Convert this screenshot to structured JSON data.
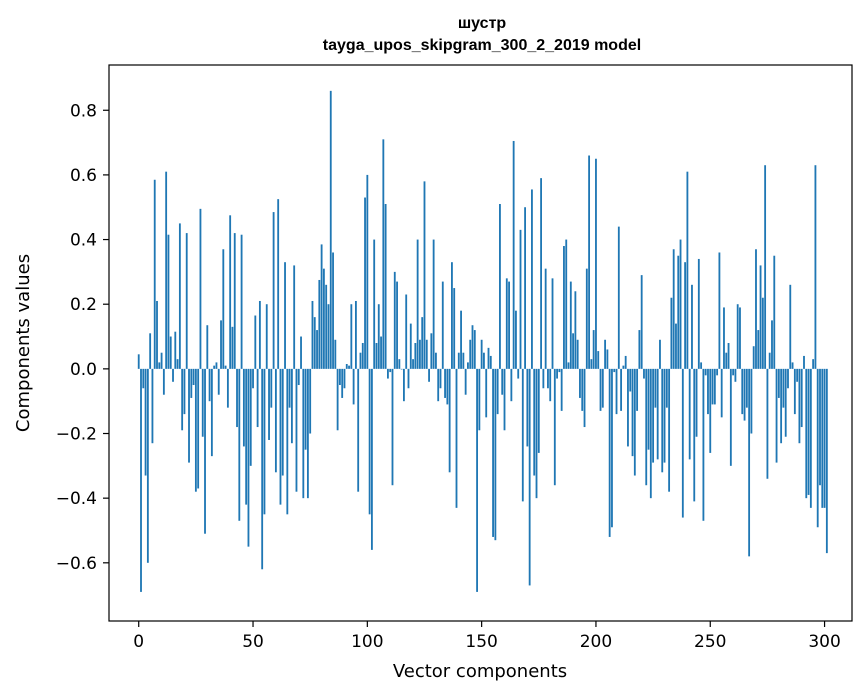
{
  "chart_data": {
    "type": "bar",
    "title": "шустр",
    "subtitle": "tayga_upos_skipgram_300_2_2019 model",
    "xlabel": "Vector components",
    "ylabel": "Components values",
    "xlim": [
      -13,
      312
    ],
    "ylim": [
      -0.78,
      0.94
    ],
    "xticks": [
      0,
      50,
      100,
      150,
      200,
      250,
      300
    ],
    "xtick_labels": [
      "0",
      "50",
      "100",
      "150",
      "200",
      "250",
      "300"
    ],
    "yticks": [
      -0.6,
      -0.4,
      -0.2,
      0.0,
      0.2,
      0.4,
      0.6,
      0.8
    ],
    "ytick_labels": [
      "−0.6",
      "−0.4",
      "−0.2",
      "0.0",
      "0.2",
      "0.4",
      "0.6",
      "0.8"
    ],
    "bar_color": "#1f77b4",
    "grid": false,
    "values": [
      0.045,
      -0.69,
      -0.06,
      -0.33,
      -0.6,
      0.11,
      -0.23,
      0.585,
      0.21,
      0.02,
      0.05,
      -0.08,
      0.61,
      0.415,
      0.1,
      -0.04,
      0.115,
      0.03,
      0.45,
      -0.19,
      -0.14,
      0.42,
      -0.29,
      -0.09,
      -0.05,
      -0.38,
      -0.37,
      0.495,
      -0.21,
      -0.51,
      0.135,
      -0.1,
      -0.27,
      0.01,
      0.02,
      -0.08,
      0.15,
      0.37,
      0.01,
      -0.12,
      0.475,
      0.13,
      0.42,
      -0.18,
      -0.47,
      0.415,
      -0.24,
      -0.42,
      -0.55,
      -0.3,
      -0.06,
      0.165,
      -0.18,
      0.21,
      -0.62,
      -0.45,
      0.2,
      -0.22,
      -0.12,
      0.485,
      -0.32,
      0.525,
      -0.42,
      -0.33,
      0.33,
      -0.45,
      -0.12,
      -0.23,
      0.32,
      -0.38,
      -0.05,
      0.1,
      -0.4,
      -0.25,
      -0.4,
      -0.2,
      0.21,
      0.16,
      0.12,
      0.275,
      0.385,
      0.31,
      0.26,
      0.2,
      0.86,
      0.36,
      0.09,
      -0.19,
      -0.05,
      -0.09,
      -0.06,
      0.015,
      0.01,
      0.2,
      -0.11,
      0.21,
      -0.38,
      0.05,
      0.08,
      0.53,
      0.6,
      -0.45,
      -0.56,
      0.4,
      0.08,
      0.2,
      0.1,
      0.71,
      0.51,
      -0.03,
      -0.01,
      -0.36,
      0.3,
      0.27,
      0.03,
      0.0,
      -0.1,
      0.23,
      -0.06,
      0.14,
      0.03,
      0.08,
      0.4,
      0.09,
      0.16,
      0.58,
      0.09,
      -0.04,
      0.11,
      0.4,
      0.05,
      -0.1,
      -0.06,
      0.27,
      -0.09,
      -0.11,
      -0.32,
      0.33,
      0.25,
      -0.43,
      0.05,
      0.18,
      0.05,
      -0.08,
      0.02,
      0.09,
      0.135,
      0.12,
      -0.69,
      -0.19,
      0.09,
      0.05,
      -0.15,
      0.065,
      0.04,
      -0.52,
      -0.53,
      -0.14,
      0.51,
      -0.08,
      -0.19,
      0.28,
      0.27,
      -0.1,
      0.705,
      0.18,
      -0.03,
      0.43,
      -0.41,
      0.5,
      -0.24,
      -0.67,
      0.555,
      -0.33,
      -0.4,
      -0.26,
      0.59,
      -0.06,
      0.31,
      -0.06,
      -0.1,
      0.28,
      -0.36,
      -0.03,
      -0.01,
      -0.13,
      0.38,
      0.4,
      0.02,
      0.27,
      0.11,
      0.24,
      0.09,
      -0.09,
      -0.13,
      -0.18,
      0.31,
      0.66,
      0.03,
      0.12,
      0.65,
      0.055,
      -0.13,
      -0.12,
      0.09,
      0.06,
      -0.52,
      -0.49,
      -0.01,
      -0.14,
      0.44,
      -0.13,
      0.01,
      0.04,
      -0.24,
      -0.07,
      -0.27,
      -0.33,
      -0.13,
      0.12,
      0.29,
      -0.03,
      -0.36,
      -0.25,
      -0.4,
      -0.29,
      -0.12,
      -0.28,
      0.09,
      -0.32,
      -0.29,
      -0.12,
      -0.38,
      0.22,
      0.37,
      0.14,
      0.35,
      0.4,
      -0.46,
      0.33,
      0.61,
      -0.28,
      0.26,
      -0.41,
      -0.21,
      0.34,
      0.02,
      -0.47,
      -0.02,
      -0.14,
      -0.26,
      -0.11,
      -0.11,
      -0.02,
      0.36,
      -0.15,
      0.19,
      0.05,
      0.08,
      -0.3,
      -0.02,
      -0.04,
      0.2,
      0.19,
      -0.14,
      -0.16,
      -0.12,
      -0.58,
      -0.2,
      0.07,
      0.37,
      0.12,
      0.32,
      0.22,
      0.63,
      -0.34,
      0.05,
      0.15,
      0.35,
      -0.29,
      -0.09,
      -0.23,
      -0.12,
      -0.21,
      -0.06,
      0.26,
      0.02,
      -0.14,
      -0.04,
      -0.23,
      -0.18,
      0.04,
      -0.4,
      -0.39,
      -0.43,
      0.03,
      0.63,
      -0.49,
      -0.36,
      -0.43,
      -0.43,
      -0.57
    ]
  }
}
